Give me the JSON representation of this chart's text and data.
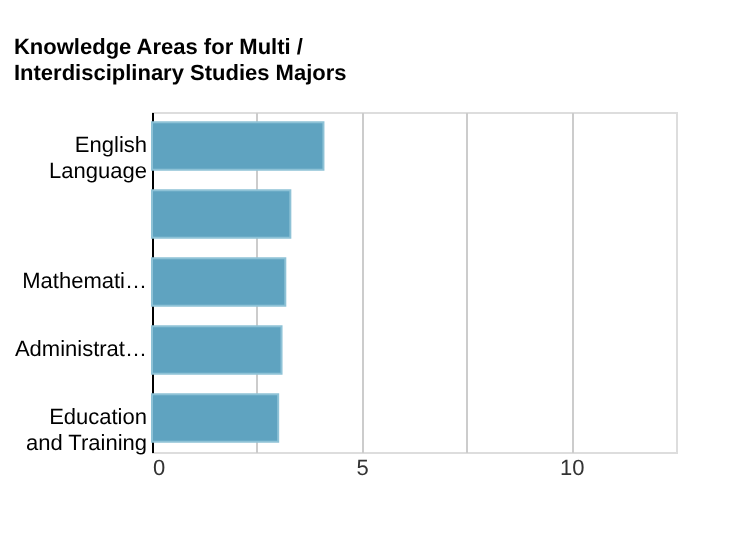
{
  "chart_data": {
    "type": "bar",
    "orientation": "horizontal",
    "title": "Knowledge Areas for Multi / Interdisciplinary Studies Majors",
    "categories": [
      "English Language",
      null,
      "Mathemati…",
      "Administrat…",
      "Education and Training"
    ],
    "values": [
      4.09,
      3.3,
      3.18,
      3.09,
      3.01
    ],
    "color": "#5fa3c0",
    "xlim": [
      0,
      12.5
    ],
    "xticks": [
      0,
      {
        "value": 2.5,
        "label": null
      },
      5,
      {
        "value": 7.5,
        "label": null
      },
      10
    ],
    "grid": "x"
  }
}
